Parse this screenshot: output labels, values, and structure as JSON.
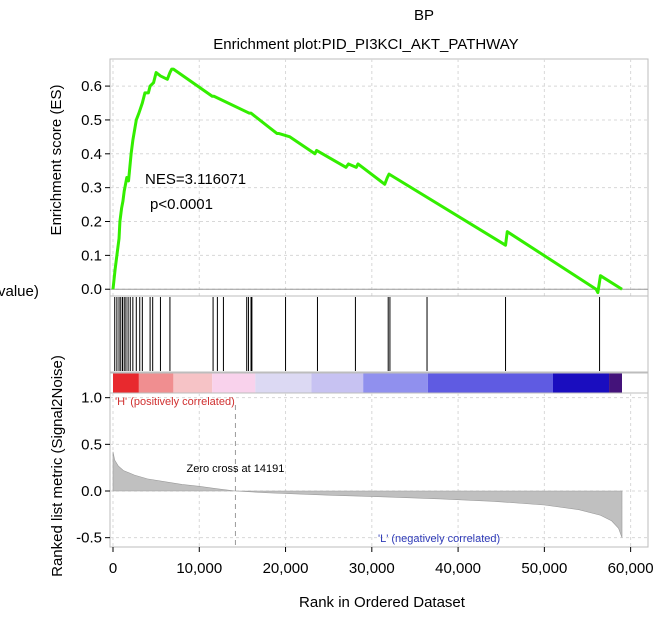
{
  "header": {
    "collection": "BP",
    "title": "Enrichment plot:PID_PI3KCI_AKT_PATHWAY"
  },
  "clipped_left_label": "value)",
  "chart_data": {
    "type": "line",
    "title": "Enrichment plot:PID_PI3KCI_AKT_PATHWAY",
    "xlabel": "Rank in Ordered Dataset",
    "xlim": [
      0,
      59000
    ],
    "x_ticks": [
      0,
      10000,
      20000,
      30000,
      40000,
      50000,
      60000
    ],
    "x_tick_labels": [
      "0",
      "10,000",
      "20,000",
      "30,000",
      "40,000",
      "50,000",
      "60,000"
    ],
    "grid": true,
    "es_panel": {
      "ylabel": "Enrichment score (ES)",
      "ylim": [
        -0.02,
        0.68
      ],
      "y_ticks": [
        0.0,
        0.1,
        0.2,
        0.3,
        0.4,
        0.5,
        0.6
      ],
      "y_tick_labels": [
        "0.0",
        "0.1",
        "0.2",
        "0.3",
        "0.4",
        "0.5",
        "0.6"
      ],
      "line_color": "#33ee00",
      "x": [
        0,
        250,
        500,
        700,
        800,
        1000,
        1150,
        1300,
        1600,
        1800,
        2100,
        2300,
        2700,
        3000,
        3400,
        3700,
        4100,
        4300,
        4700,
        5000,
        5500,
        6300,
        6600,
        6800,
        7000,
        11500,
        11700,
        15800,
        16000,
        19000,
        19200,
        20500,
        23400,
        23600,
        27000,
        27300,
        28200,
        28400,
        31500,
        31800,
        32000,
        45500,
        45700,
        56000,
        56200,
        56500,
        59000
      ],
      "y": [
        0.0,
        0.06,
        0.11,
        0.15,
        0.2,
        0.24,
        0.26,
        0.29,
        0.33,
        0.32,
        0.4,
        0.44,
        0.5,
        0.52,
        0.55,
        0.58,
        0.58,
        0.6,
        0.61,
        0.64,
        0.63,
        0.62,
        0.64,
        0.65,
        0.65,
        0.57,
        0.57,
        0.52,
        0.52,
        0.46,
        0.46,
        0.45,
        0.4,
        0.41,
        0.36,
        0.37,
        0.36,
        0.37,
        0.31,
        0.33,
        0.34,
        0.13,
        0.17,
        0.0,
        -0.01,
        0.04,
        0.0
      ],
      "annotations": [
        "NES=3.116071",
        "p<0.0001"
      ]
    },
    "hits": [
      200,
      450,
      700,
      900,
      1100,
      1300,
      1500,
      1750,
      2000,
      2300,
      2700,
      3100,
      3400,
      4300,
      4600,
      5500,
      6600,
      11600,
      12100,
      12800,
      15500,
      15700,
      16000,
      16100,
      20000,
      23700,
      28100,
      31900,
      32100,
      36400,
      45500,
      56400
    ],
    "ranked_panel": {
      "ylabel": "Ranked list metric (Signal2Noise)",
      "ylim": [
        -0.6,
        1.05
      ],
      "y_ticks": [
        1.0,
        0.5,
        0.0,
        -0.5
      ],
      "y_tick_labels": [
        "1.0",
        "0.5",
        "0.0",
        "-0.5"
      ],
      "zero_cross": 14191,
      "zero_cross_label": "Zero cross at 14191",
      "positive_label": "'H' (positively correlated)",
      "negative_label": "'L' (negatively correlated)",
      "fill_color": "#c0c0c0",
      "x": [
        0,
        200,
        600,
        1200,
        2500,
        4000,
        6000,
        8000,
        10000,
        12000,
        14191,
        18000,
        25000,
        32000,
        38000,
        44000,
        50000,
        54000,
        56500,
        57800,
        58600,
        59000
      ],
      "y": [
        0.42,
        0.33,
        0.27,
        0.22,
        0.17,
        0.13,
        0.1,
        0.07,
        0.05,
        0.025,
        0.0,
        -0.02,
        -0.045,
        -0.065,
        -0.085,
        -0.11,
        -0.15,
        -0.2,
        -0.26,
        -0.32,
        -0.4,
        -0.5
      ]
    },
    "heatmap_bar": {
      "x_edges": [
        0,
        3000,
        7000,
        11500,
        16500,
        23000,
        29000,
        36500,
        51000,
        57500,
        59000
      ],
      "colors": [
        "#e8292e",
        "#f08e90",
        "#f6c3c6",
        "#f9d2ec",
        "#dcd9f3",
        "#c7c2f2",
        "#9090ee",
        "#5f5be2",
        "#1a0dbf",
        "#44137a"
      ]
    }
  }
}
